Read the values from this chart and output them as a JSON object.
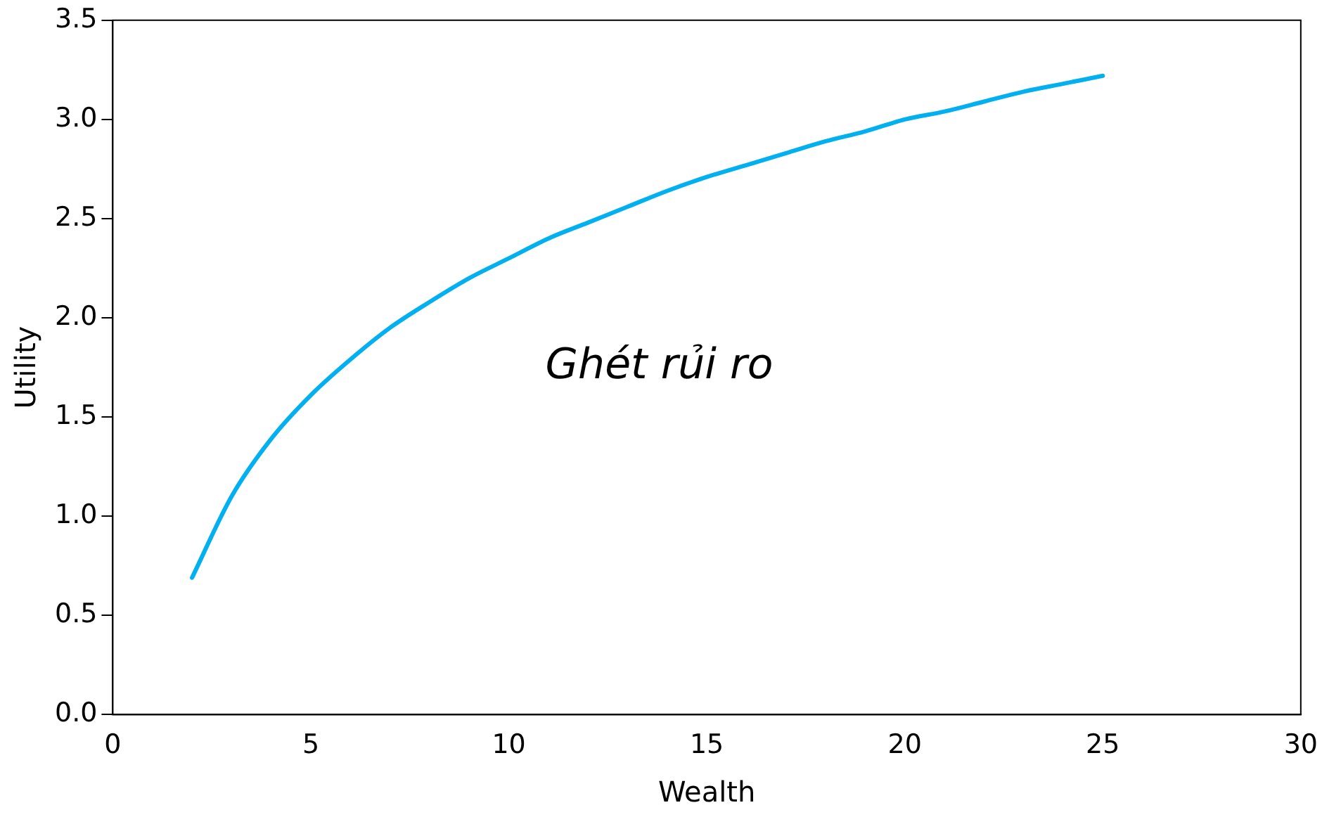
{
  "chart_data": {
    "type": "line",
    "xlabel": "Wealth",
    "ylabel": "Utility",
    "annotations": [
      "Ghét rủi ro"
    ],
    "x": [
      2,
      3,
      4,
      5,
      6,
      7,
      8,
      9,
      10,
      11,
      12,
      13,
      14,
      15,
      16,
      17,
      18,
      19,
      20,
      21,
      22,
      23,
      24,
      25
    ],
    "series": [
      {
        "color": "#00b0f0",
        "values": [
          0.69,
          1.1,
          1.39,
          1.61,
          1.79,
          1.95,
          2.08,
          2.2,
          2.3,
          2.4,
          2.48,
          2.56,
          2.64,
          2.71,
          2.77,
          2.83,
          2.89,
          2.94,
          3.0,
          3.04,
          3.09,
          3.14,
          3.18,
          3.22
        ]
      }
    ],
    "xlim": [
      0,
      30
    ],
    "xticks": [
      0,
      5,
      10,
      15,
      20,
      25,
      30
    ],
    "ylim": [
      0,
      3.5
    ],
    "yticks": [
      {
        "value": 0,
        "label": "0.0"
      },
      {
        "value": 0.5,
        "label": "0.5"
      },
      {
        "value": 1,
        "label": "1.0"
      },
      {
        "value": 1.5,
        "label": "1.5"
      },
      {
        "value": 2,
        "label": "2.0"
      },
      {
        "value": 2.5,
        "label": "2.5"
      },
      {
        "value": 3,
        "label": "3.0"
      },
      {
        "value": 3.5,
        "label": "3.5"
      }
    ],
    "grid": false,
    "legend": false,
    "marker": "none",
    "line_style": "solid"
  }
}
